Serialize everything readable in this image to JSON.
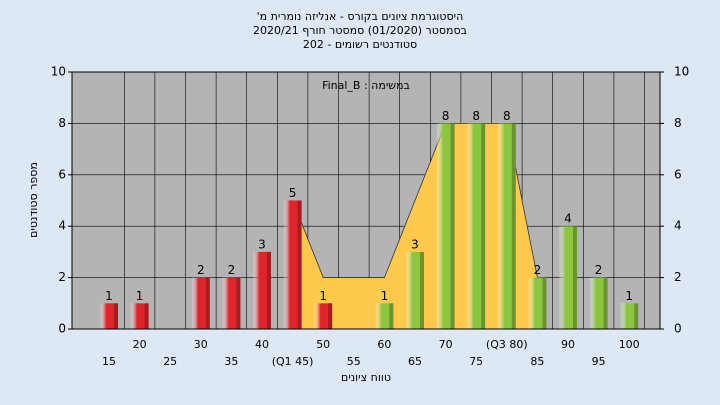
{
  "chart_data": {
    "type": "bar",
    "title": [
      "היסטוגרמת ציונים בקורס - אנליזה נומרית מ'",
      "בסמסטר (01/2020) סמסטר חורף 2020/21",
      "סטודנטים רשומים - 202"
    ],
    "annotation": "במשימה : Final_B",
    "x_label": "טווח ציונים",
    "y_label": "מספר סטודנטים",
    "categories": [
      "15",
      "20",
      "25",
      "30",
      "35",
      "40",
      "(Q1 45)",
      "50",
      "55",
      "60",
      "65",
      "70",
      "75",
      "(Q3 80)",
      "85",
      "90",
      "95",
      "100"
    ],
    "values": [
      1,
      1,
      null,
      2,
      2,
      3,
      5,
      1,
      null,
      1,
      3,
      8,
      8,
      8,
      2,
      4,
      2,
      1
    ],
    "colors": [
      "#e0242c",
      "#e0242c",
      "#e0242c",
      "#e0242c",
      "#e0242c",
      "#e0242c",
      "#e0242c",
      "#e0242c",
      "#e0242c",
      "#8cc63f",
      "#8cc63f",
      "#8cc63f",
      "#8cc63f",
      "#8cc63f",
      "#8cc63f",
      "#8cc63f",
      "#8cc63f",
      "#8cc63f"
    ],
    "band": {
      "x": [
        45,
        50,
        60,
        70,
        80,
        85
      ],
      "values": [
        5,
        2,
        2,
        8,
        8,
        2
      ],
      "color": "#ffc94d"
    },
    "ylim": [
      0,
      10
    ],
    "yticks": [
      0,
      2,
      4,
      6,
      8,
      10
    ],
    "y2lim": [
      0,
      10
    ],
    "y2ticks": [
      0,
      2,
      4,
      6,
      8,
      10
    ],
    "grid": true
  }
}
